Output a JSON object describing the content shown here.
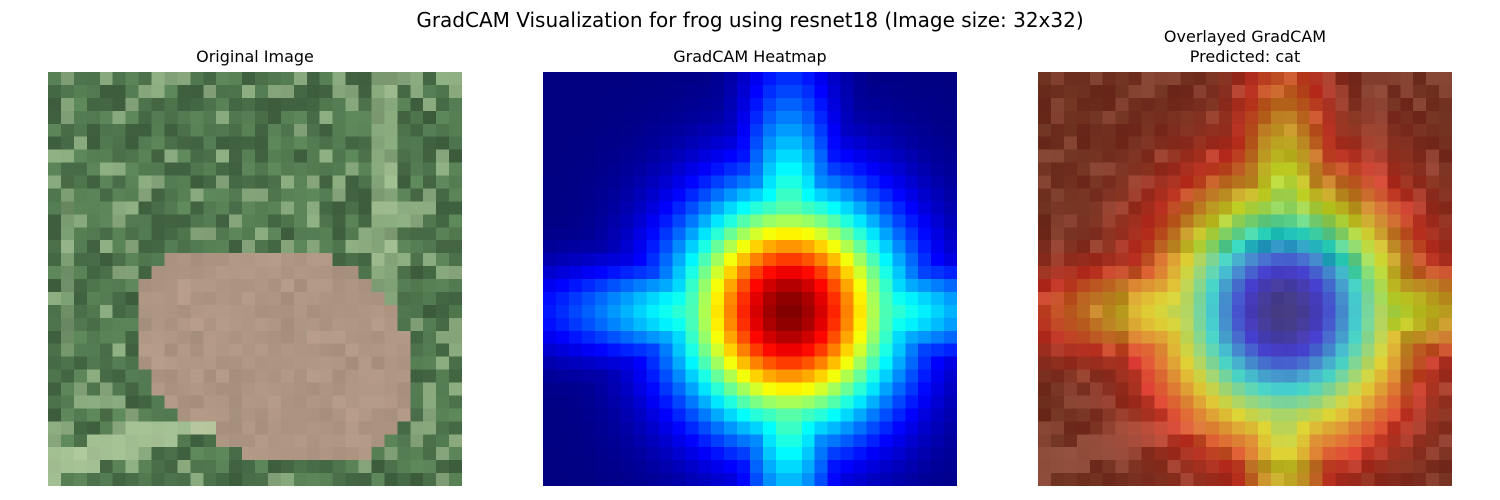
{
  "figure": {
    "suptitle": "GradCAM Visualization for frog using resnet18 (Image size: 32x32)"
  },
  "panels": {
    "original": {
      "title": "Original Image"
    },
    "heatmap": {
      "title": "GradCAM Heatmap",
      "colormap": "jet"
    },
    "overlay": {
      "title_line1": "Overlayed GradCAM",
      "title_line2": "Predicted: cat"
    }
  },
  "image": {
    "grid": 32,
    "palette": {
      "background_green": "#5f8a5c",
      "dark_leaf": "#1e3520",
      "light_blade": "#b7d2a4",
      "frog_tan": "#b29a86"
    }
  }
}
